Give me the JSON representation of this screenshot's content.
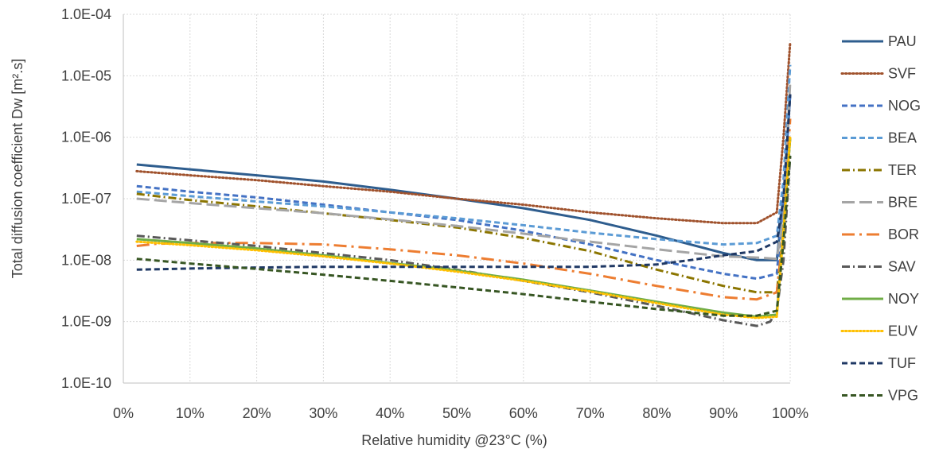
{
  "chart_data": {
    "type": "line",
    "xlabel": "Relative humidity @23°C (%)",
    "ylabel": "Total diffusion coefficient Dw [m².s]",
    "x_scale": "linear",
    "y_scale": "log",
    "xlim": [
      0,
      100
    ],
    "ylim": [
      1e-10,
      0.0001
    ],
    "x_ticks": [
      0,
      10,
      20,
      30,
      40,
      50,
      60,
      70,
      80,
      90,
      100
    ],
    "x_tick_labels": [
      "0%",
      "10%",
      "20%",
      "30%",
      "40%",
      "50%",
      "60%",
      "70%",
      "80%",
      "90%",
      "100%"
    ],
    "y_ticks": [
      1e-10,
      1e-09,
      1e-08,
      1e-07,
      1e-06,
      1e-05,
      0.0001
    ],
    "y_tick_labels": [
      "1.0E-10",
      "1.0E-09",
      "1.0E-08",
      "1.0E-07",
      "1.0E-06",
      "1.0E-05",
      "1.0E-04"
    ],
    "grid": true,
    "legend_position": "right",
    "series": [
      {
        "name": "PAU",
        "color": "#2e5d8e",
        "style": "solid",
        "x": [
          2,
          10,
          20,
          30,
          40,
          50,
          60,
          70,
          80,
          90,
          95,
          98,
          99,
          100
        ],
        "y": [
          3.6e-07,
          3e-07,
          2.4e-07,
          1.9e-07,
          1.4e-07,
          1e-07,
          7e-08,
          4.5e-08,
          2.5e-08,
          1.3e-08,
          1e-08,
          1e-08,
          1e-07,
          5e-06
        ]
      },
      {
        "name": "SVF",
        "color": "#a0522d",
        "style": "dotted",
        "x": [
          2,
          10,
          20,
          30,
          40,
          50,
          60,
          70,
          80,
          90,
          95,
          98,
          99,
          100
        ],
        "y": [
          2.8e-07,
          2.4e-07,
          2e-07,
          1.6e-07,
          1.3e-07,
          1e-07,
          8e-08,
          6e-08,
          4.8e-08,
          4e-08,
          4e-08,
          6e-08,
          1e-06,
          3.5e-05
        ]
      },
      {
        "name": "NOG",
        "color": "#4472c4",
        "style": "dashed",
        "x": [
          2,
          10,
          20,
          30,
          40,
          50,
          60,
          70,
          80,
          90,
          95,
          98,
          99,
          100
        ],
        "y": [
          1.6e-07,
          1.3e-07,
          1.05e-07,
          8e-08,
          6e-08,
          4.5e-08,
          3e-08,
          1.8e-08,
          1e-08,
          6e-09,
          5e-09,
          6e-09,
          1e-07,
          5e-06
        ]
      },
      {
        "name": "BEA",
        "color": "#5b9bd5",
        "style": "dashed",
        "x": [
          2,
          10,
          20,
          30,
          40,
          50,
          60,
          70,
          80,
          90,
          95,
          98,
          99,
          100
        ],
        "y": [
          1.3e-07,
          1.1e-07,
          9e-08,
          7.5e-08,
          6e-08,
          4.8e-08,
          3.7e-08,
          2.8e-08,
          2.2e-08,
          1.8e-08,
          1.9e-08,
          2.5e-08,
          2e-07,
          1.5e-05
        ]
      },
      {
        "name": "TER",
        "color": "#8b7500",
        "style": "dashdot",
        "x": [
          2,
          10,
          20,
          30,
          40,
          50,
          60,
          70,
          80,
          90,
          95,
          98,
          99,
          100
        ],
        "y": [
          1.2e-07,
          9.5e-08,
          7.5e-08,
          5.8e-08,
          4.5e-08,
          3.4e-08,
          2.3e-08,
          1.4e-08,
          7e-09,
          3.8e-09,
          3e-09,
          3e-09,
          3e-08,
          1e-06
        ]
      },
      {
        "name": "BRE",
        "color": "#a5a5a5",
        "style": "longdash",
        "x": [
          2,
          10,
          20,
          30,
          40,
          50,
          60,
          70,
          80,
          90,
          95,
          98,
          99,
          100
        ],
        "y": [
          1e-07,
          8.5e-08,
          7e-08,
          5.8e-08,
          4.6e-08,
          3.6e-08,
          2.7e-08,
          2e-08,
          1.5e-08,
          1.15e-08,
          1.1e-08,
          1.05e-08,
          5e-08,
          8e-06
        ]
      },
      {
        "name": "BOR",
        "color": "#ed7d31",
        "style": "longdashdot",
        "x": [
          2,
          5,
          10,
          20,
          30,
          40,
          50,
          60,
          70,
          80,
          90,
          95,
          98,
          99,
          100
        ],
        "y": [
          1.7e-08,
          1.85e-08,
          1.9e-08,
          1.9e-08,
          1.8e-08,
          1.5e-08,
          1.2e-08,
          8.8e-09,
          6e-09,
          3.8e-09,
          2.5e-09,
          2.3e-09,
          3e-09,
          3e-08,
          2e-06
        ]
      },
      {
        "name": "SAV",
        "color": "#595959",
        "style": "dashdot",
        "x": [
          2,
          10,
          20,
          30,
          40,
          50,
          60,
          70,
          80,
          90,
          95,
          97,
          98,
          99,
          100
        ],
        "y": [
          2.5e-08,
          2.1e-08,
          1.7e-08,
          1.3e-08,
          1e-08,
          7e-09,
          4.6e-09,
          3e-09,
          1.8e-09,
          1.05e-09,
          8.5e-10,
          1e-09,
          1.5e-09,
          1e-08,
          5e-07
        ]
      },
      {
        "name": "NOY",
        "color": "#70ad47",
        "style": "solid",
        "x": [
          2,
          10,
          20,
          30,
          40,
          50,
          60,
          70,
          80,
          90,
          95,
          98,
          99,
          100
        ],
        "y": [
          2.2e-08,
          1.9e-08,
          1.55e-08,
          1.2e-08,
          9e-09,
          6.8e-09,
          4.8e-09,
          3.2e-09,
          2.1e-09,
          1.4e-09,
          1.2e-09,
          1.3e-09,
          3e-08,
          1e-06
        ]
      },
      {
        "name": "EUV",
        "color": "#ffc000",
        "style": "dotted",
        "x": [
          2,
          10,
          20,
          30,
          40,
          50,
          60,
          70,
          80,
          90,
          95,
          98,
          99,
          100
        ],
        "y": [
          2e-08,
          1.75e-08,
          1.45e-08,
          1.15e-08,
          8.8e-09,
          6.5e-09,
          4.6e-09,
          3.1e-09,
          2e-09,
          1.3e-09,
          1.15e-09,
          1.2e-09,
          3e-08,
          1e-06
        ]
      },
      {
        "name": "TUF",
        "color": "#1f3864",
        "style": "dashed",
        "x": [
          2,
          10,
          20,
          30,
          40,
          50,
          60,
          70,
          80,
          85,
          90,
          95,
          98,
          99,
          100
        ],
        "y": [
          7e-09,
          7.3e-09,
          7.6e-09,
          7.8e-09,
          7.8e-09,
          7.8e-09,
          7.8e-09,
          7.8e-09,
          8.5e-09,
          1e-08,
          1.2e-08,
          1.4e-08,
          2e-08,
          1e-07,
          5e-06
        ]
      },
      {
        "name": "VPG",
        "color": "#375623",
        "style": "dashed",
        "x": [
          2,
          10,
          20,
          30,
          40,
          50,
          60,
          70,
          80,
          90,
          95,
          98,
          99,
          100
        ],
        "y": [
          1.05e-08,
          8.8e-09,
          7.2e-09,
          5.8e-09,
          4.6e-09,
          3.6e-09,
          2.8e-09,
          2.1e-09,
          1.6e-09,
          1.25e-09,
          1.25e-09,
          1.5e-09,
          2e-08,
          5e-07
        ]
      }
    ]
  }
}
